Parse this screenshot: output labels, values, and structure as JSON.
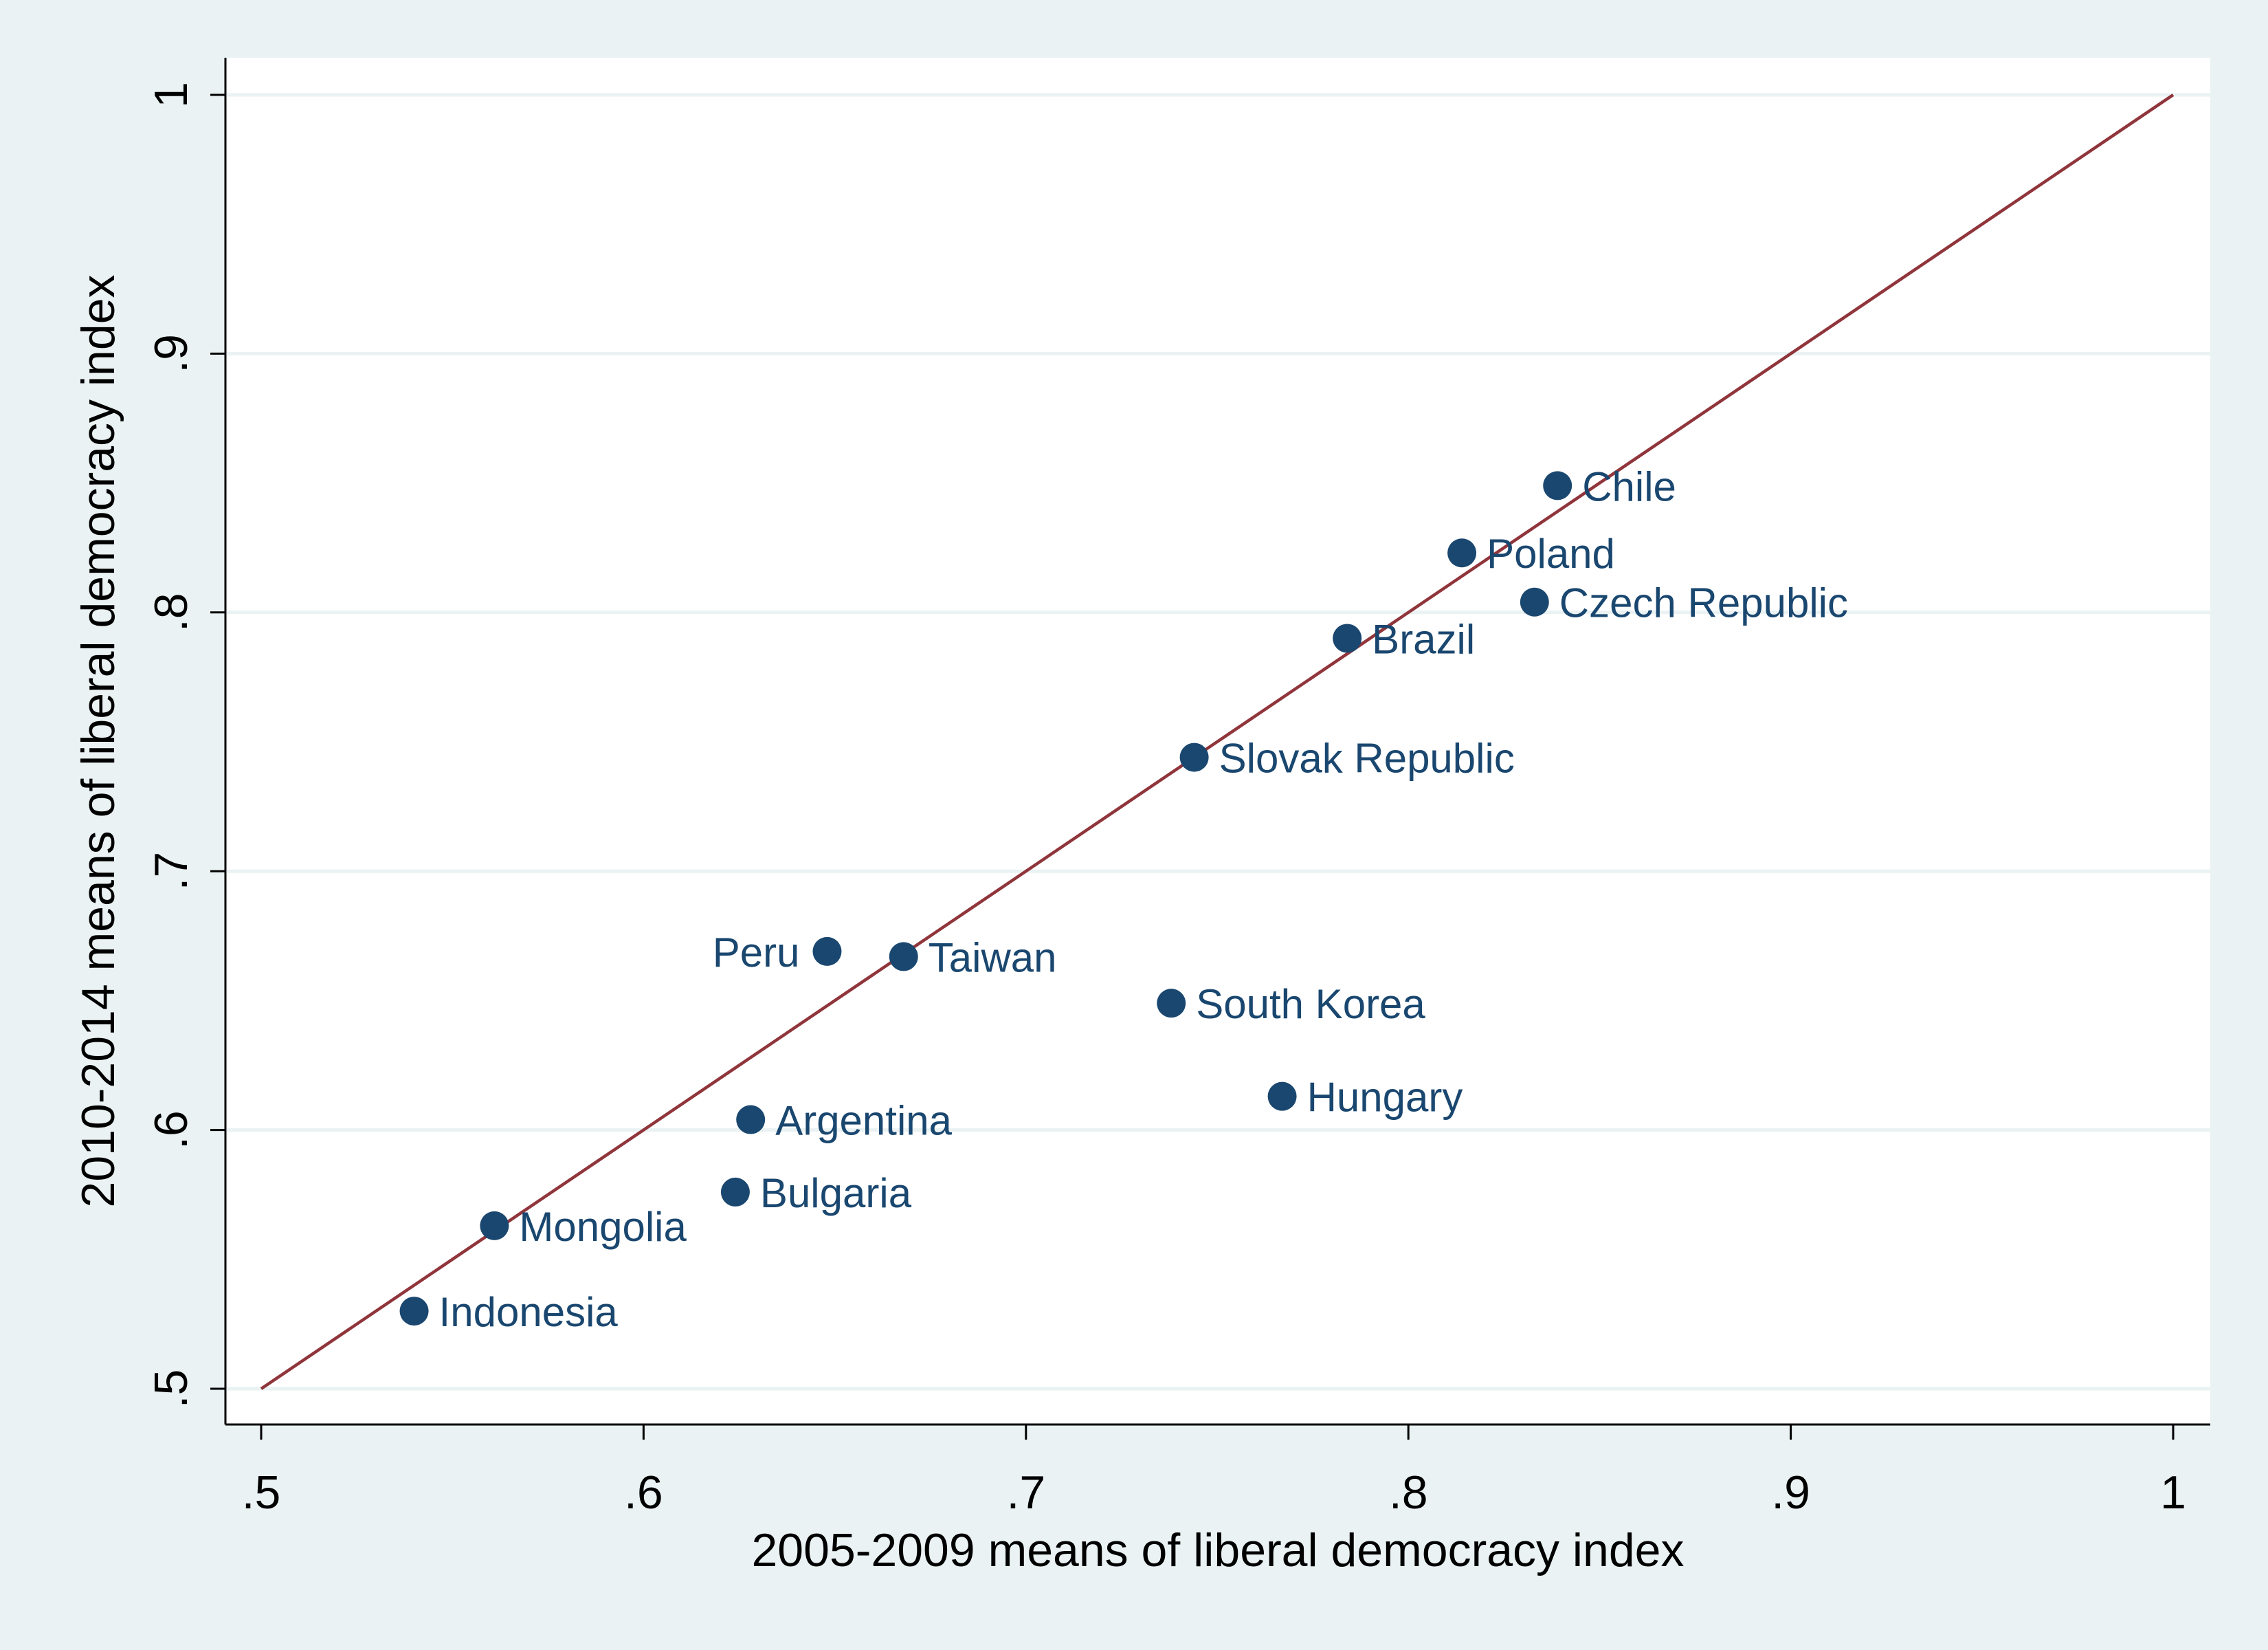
{
  "chart_data": {
    "type": "scatter",
    "xlabel": "2005-2009 means of liberal democracy index",
    "ylabel": "2010-2014 means of liberal democracy index",
    "xlim": [
      0.5,
      1
    ],
    "ylim": [
      0.5,
      1
    ],
    "x_ticks": [
      {
        "value": 0.5,
        "label": ".5"
      },
      {
        "value": 0.6,
        "label": ".6"
      },
      {
        "value": 0.7,
        "label": ".7"
      },
      {
        "value": 0.8,
        "label": ".8"
      },
      {
        "value": 0.9,
        "label": ".9"
      },
      {
        "value": 1.0,
        "label": "1"
      }
    ],
    "y_ticks": [
      {
        "value": 0.5,
        "label": ".5"
      },
      {
        "value": 0.6,
        "label": ".6"
      },
      {
        "value": 0.7,
        "label": ".7"
      },
      {
        "value": 0.8,
        "label": ".8"
      },
      {
        "value": 0.9,
        "label": ".9"
      },
      {
        "value": 1.0,
        "label": "1"
      }
    ],
    "grid": true,
    "reference_line": {
      "from": [
        0.5,
        0.5
      ],
      "to": [
        1.0,
        1.0
      ],
      "color": "#90353b"
    },
    "marker_color": "#1a476f",
    "line_color": "#90353b",
    "points": [
      {
        "label": "Chile",
        "x": 0.839,
        "y": 0.849,
        "label_side": "right"
      },
      {
        "label": "Poland",
        "x": 0.814,
        "y": 0.823,
        "label_side": "right"
      },
      {
        "label": "Czech Republic",
        "x": 0.833,
        "y": 0.804,
        "label_side": "right"
      },
      {
        "label": "Brazil",
        "x": 0.784,
        "y": 0.79,
        "label_side": "right"
      },
      {
        "label": "Slovak Republic",
        "x": 0.744,
        "y": 0.744,
        "label_side": "right"
      },
      {
        "label": "Peru",
        "x": 0.648,
        "y": 0.669,
        "label_side": "left"
      },
      {
        "label": "Taiwan",
        "x": 0.668,
        "y": 0.667,
        "label_side": "right"
      },
      {
        "label": "South Korea",
        "x": 0.738,
        "y": 0.649,
        "label_side": "right"
      },
      {
        "label": "Hungary",
        "x": 0.767,
        "y": 0.613,
        "label_side": "right"
      },
      {
        "label": "Argentina",
        "x": 0.628,
        "y": 0.604,
        "label_side": "right"
      },
      {
        "label": "Bulgaria",
        "x": 0.624,
        "y": 0.576,
        "label_side": "right"
      },
      {
        "label": "Mongolia",
        "x": 0.561,
        "y": 0.563,
        "label_side": "right"
      },
      {
        "label": "Indonesia",
        "x": 0.54,
        "y": 0.53,
        "label_side": "right"
      }
    ]
  }
}
